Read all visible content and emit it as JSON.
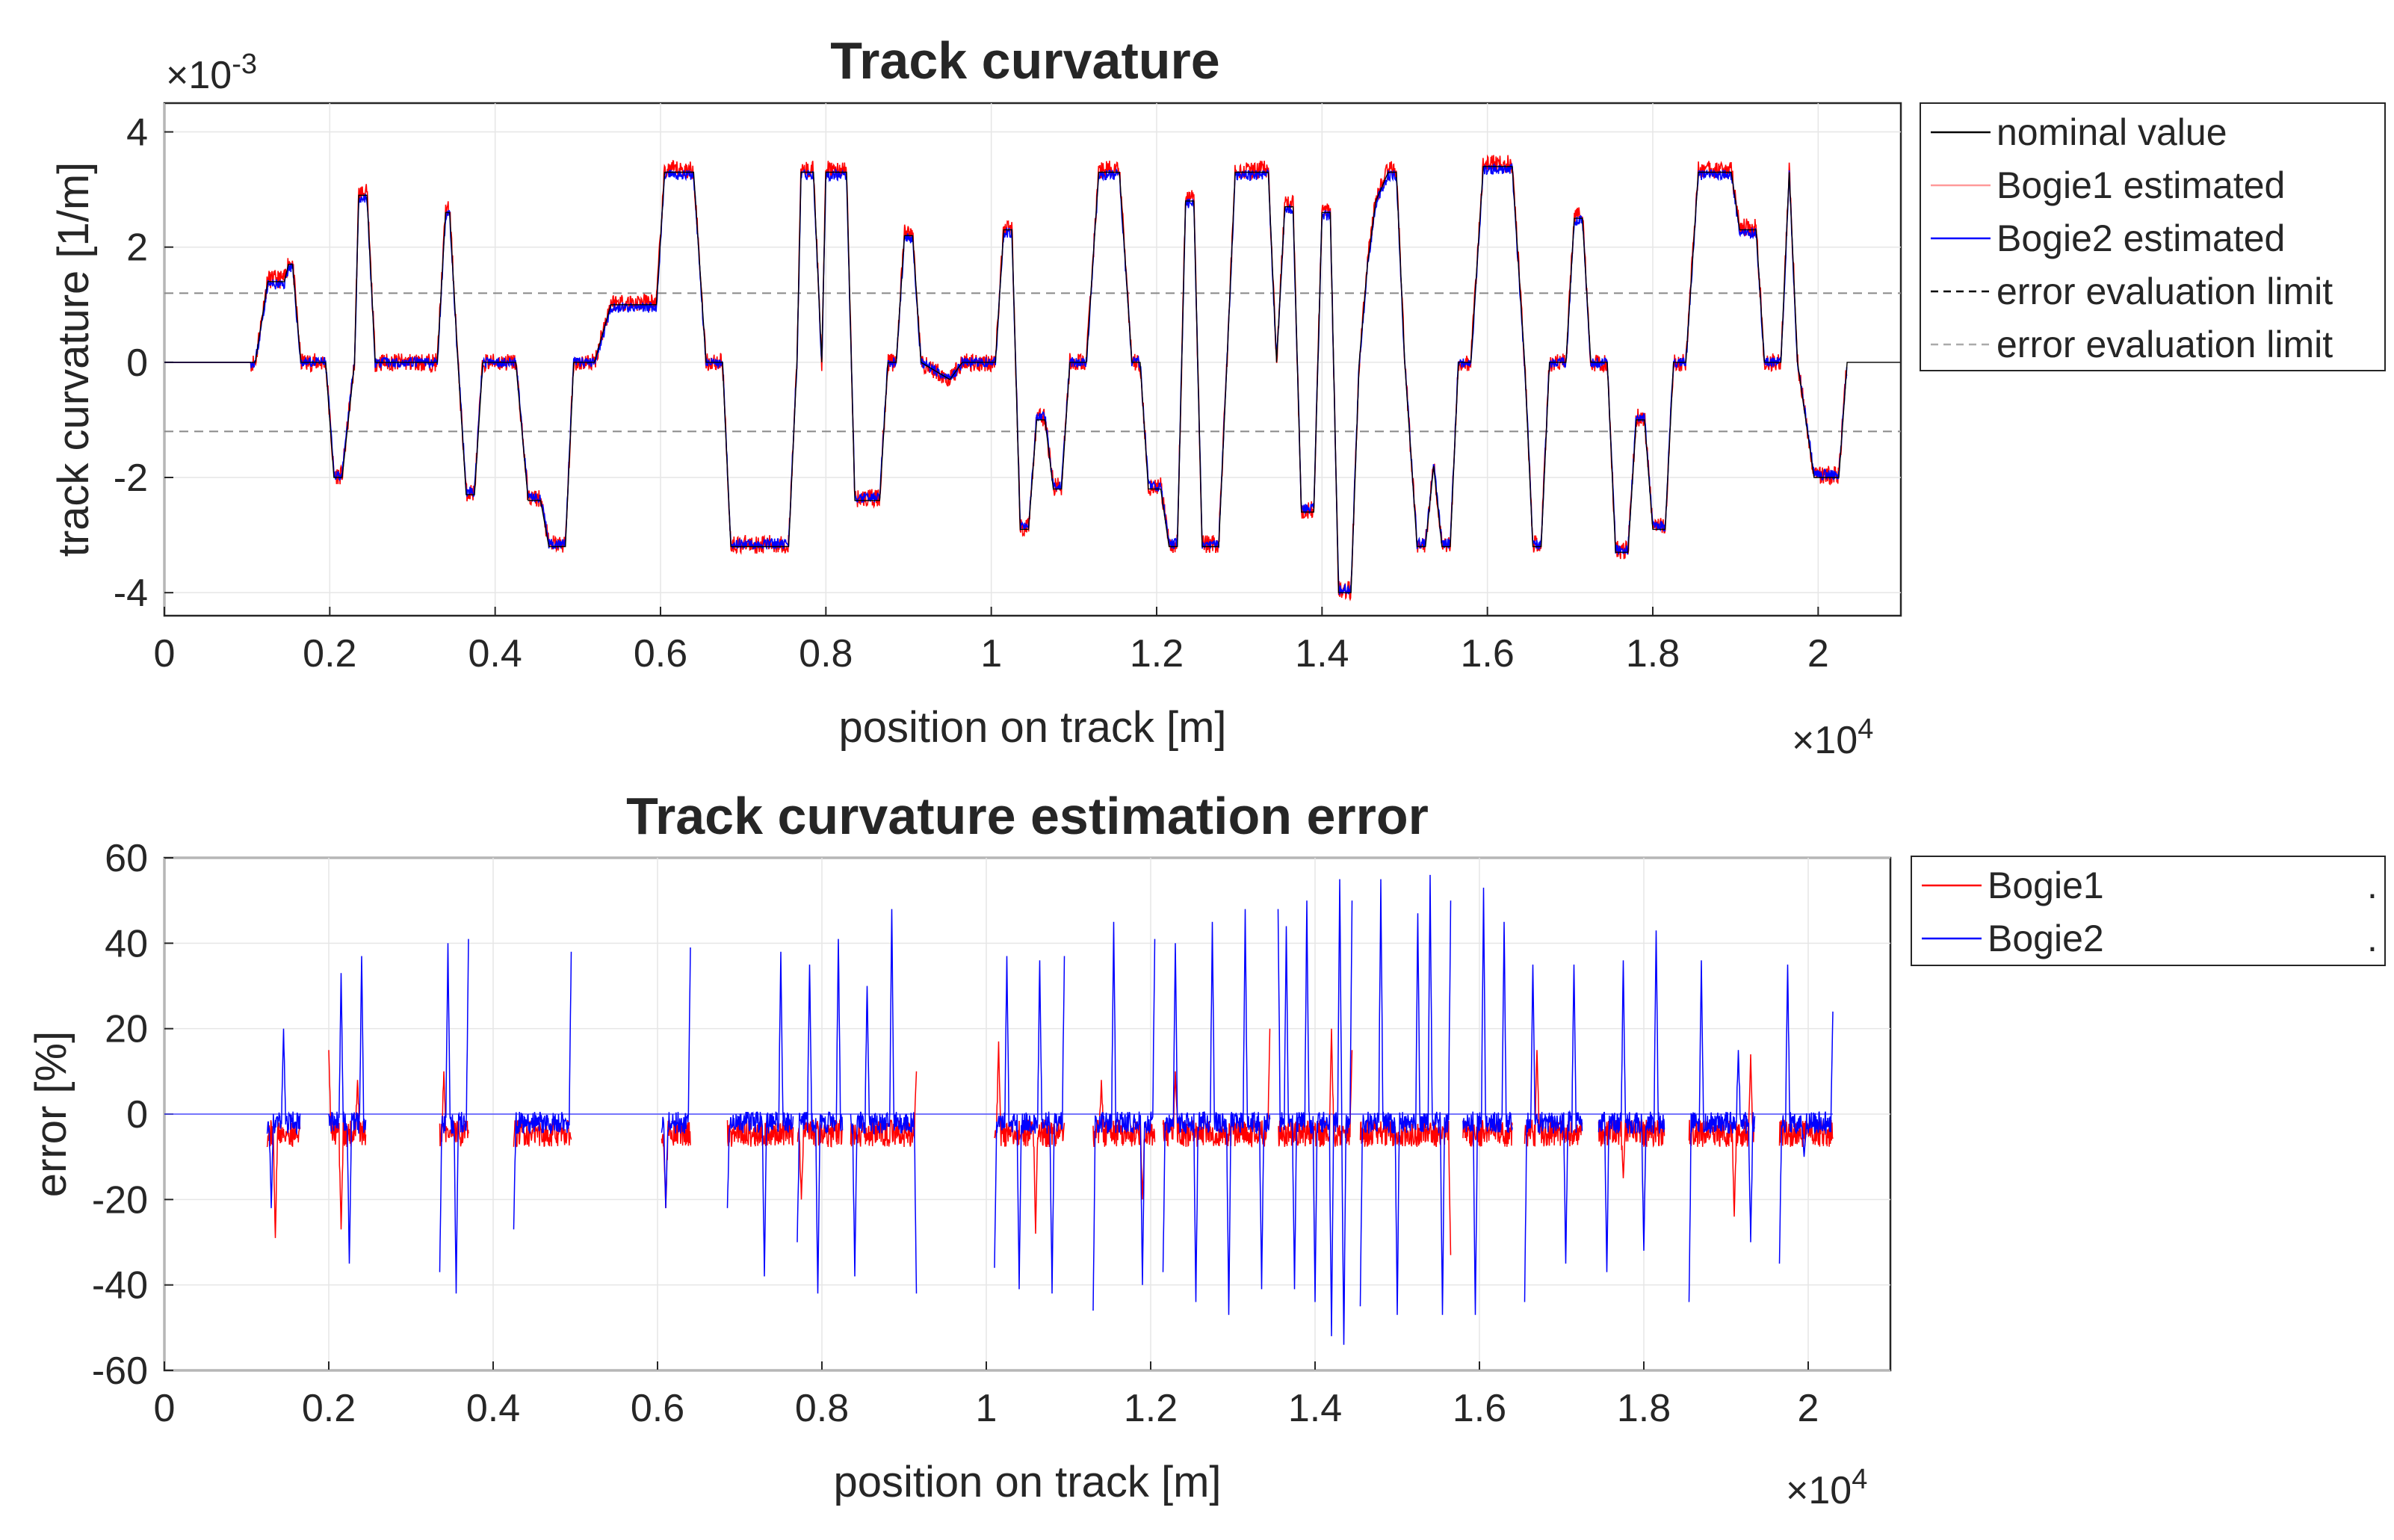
{
  "chart_data": [
    {
      "type": "line",
      "title": "Track curvature",
      "xlabel": "position on track [m]",
      "ylabel": "track curvature [1/m]",
      "x_multiplier": "×10^4",
      "y_multiplier": "×10^-3",
      "x_multiplier_base": "×10",
      "x_multiplier_exp": "4",
      "y_multiplier_base": "×10",
      "y_multiplier_exp": "-3",
      "xlim": [
        0,
        21000
      ],
      "ylim": [
        -4.4,
        4.5
      ],
      "x_ticks": [
        0,
        2000,
        4000,
        6000,
        8000,
        10000,
        12000,
        14000,
        16000,
        18000,
        20000
      ],
      "x_tick_labels": [
        "0",
        "0.2",
        "0.4",
        "0.6",
        "0.8",
        "1",
        "1.2",
        "1.4",
        "1.6",
        "1.8",
        "2"
      ],
      "y_ticks": [
        -4,
        -2,
        0,
        2,
        4
      ],
      "y_tick_labels": [
        "-4",
        "-2",
        "0",
        "2",
        "4"
      ],
      "grid": true,
      "legend_position": "outside-right",
      "legend": [
        {
          "label": "nominal value",
          "color": "#000000",
          "style": "solid"
        },
        {
          "label": "Bogie1 estimated",
          "color": "#ff9999",
          "style": "solid"
        },
        {
          "label": "Bogie2 estimated",
          "color": "#0000ff",
          "style": "solid"
        },
        {
          "label": "error evaluation limit",
          "color": "#000000",
          "style": "dashed"
        },
        {
          "label": "error evaluation limit",
          "color": "#aaaaaa",
          "style": "dashed"
        }
      ],
      "error_evaluation_limit": [
        1.2,
        -1.2
      ],
      "nominal_profile": [
        [
          0,
          0
        ],
        [
          1100,
          0
        ],
        [
          1250,
          1.4
        ],
        [
          1450,
          1.4
        ],
        [
          1500,
          1.7
        ],
        [
          1550,
          1.7
        ],
        [
          1650,
          0
        ],
        [
          1950,
          0
        ],
        [
          2050,
          -2.0
        ],
        [
          2150,
          -2.0
        ],
        [
          2300,
          0
        ],
        [
          2350,
          2.9
        ],
        [
          2450,
          2.9
        ],
        [
          2550,
          0
        ],
        [
          3300,
          0
        ],
        [
          3400,
          2.6
        ],
        [
          3450,
          2.6
        ],
        [
          3550,
          0
        ],
        [
          3650,
          -2.3
        ],
        [
          3750,
          -2.3
        ],
        [
          3850,
          0
        ],
        [
          4250,
          0
        ],
        [
          4400,
          -2.4
        ],
        [
          4550,
          -2.4
        ],
        [
          4650,
          -3.2
        ],
        [
          4850,
          -3.2
        ],
        [
          4950,
          0
        ],
        [
          5200,
          0
        ],
        [
          5400,
          1.0
        ],
        [
          5950,
          1.0
        ],
        [
          6050,
          3.3
        ],
        [
          6400,
          3.3
        ],
        [
          6550,
          0
        ],
        [
          6750,
          0
        ],
        [
          6850,
          -3.2
        ],
        [
          7550,
          -3.2
        ],
        [
          7650,
          0
        ],
        [
          7700,
          3.3
        ],
        [
          7850,
          3.3
        ],
        [
          7950,
          0
        ],
        [
          8000,
          3.3
        ],
        [
          8250,
          3.3
        ],
        [
          8350,
          -2.4
        ],
        [
          8650,
          -2.4
        ],
        [
          8750,
          0
        ],
        [
          8850,
          0
        ],
        [
          8950,
          2.2
        ],
        [
          9050,
          2.2
        ],
        [
          9150,
          0
        ],
        [
          9500,
          -0.3
        ],
        [
          9650,
          0
        ],
        [
          10050,
          0
        ],
        [
          10150,
          2.3
        ],
        [
          10250,
          2.3
        ],
        [
          10350,
          -2.9
        ],
        [
          10450,
          -2.9
        ],
        [
          10550,
          -1.0
        ],
        [
          10650,
          -1.0
        ],
        [
          10750,
          -2.2
        ],
        [
          10850,
          -2.2
        ],
        [
          10950,
          0
        ],
        [
          11150,
          0
        ],
        [
          11300,
          3.3
        ],
        [
          11550,
          3.3
        ],
        [
          11700,
          0
        ],
        [
          11800,
          0
        ],
        [
          11900,
          -2.2
        ],
        [
          12050,
          -2.2
        ],
        [
          12150,
          -3.2
        ],
        [
          12250,
          -3.2
        ],
        [
          12350,
          2.8
        ],
        [
          12450,
          2.8
        ],
        [
          12550,
          -3.2
        ],
        [
          12750,
          -3.2
        ],
        [
          12850,
          0
        ],
        [
          12950,
          3.3
        ],
        [
          13350,
          3.3
        ],
        [
          13450,
          0
        ],
        [
          13550,
          2.7
        ],
        [
          13650,
          2.7
        ],
        [
          13750,
          -2.6
        ],
        [
          13900,
          -2.6
        ],
        [
          14000,
          2.6
        ],
        [
          14100,
          2.6
        ],
        [
          14200,
          -4.0
        ],
        [
          14350,
          -4.0
        ],
        [
          14450,
          0
        ],
        [
          14550,
          1.7
        ],
        [
          14650,
          2.8
        ],
        [
          14800,
          3.3
        ],
        [
          14900,
          3.3
        ],
        [
          15000,
          0
        ],
        [
          15150,
          -3.2
        ],
        [
          15250,
          -3.2
        ],
        [
          15350,
          -1.8
        ],
        [
          15450,
          -3.2
        ],
        [
          15550,
          -3.2
        ],
        [
          15650,
          0
        ],
        [
          15800,
          0
        ],
        [
          15950,
          3.4
        ],
        [
          16300,
          3.4
        ],
        [
          16450,
          0
        ],
        [
          16550,
          -3.2
        ],
        [
          16650,
          -3.2
        ],
        [
          16750,
          0
        ],
        [
          16950,
          0
        ],
        [
          17050,
          2.5
        ],
        [
          17150,
          2.5
        ],
        [
          17250,
          0
        ],
        [
          17450,
          0
        ],
        [
          17550,
          -3.3
        ],
        [
          17700,
          -3.3
        ],
        [
          17800,
          -1.0
        ],
        [
          17900,
          -1.0
        ],
        [
          18000,
          -2.9
        ],
        [
          18150,
          -2.9
        ],
        [
          18250,
          0
        ],
        [
          18400,
          0
        ],
        [
          18550,
          3.3
        ],
        [
          18950,
          3.3
        ],
        [
          19050,
          2.3
        ],
        [
          19250,
          2.3
        ],
        [
          19350,
          0
        ],
        [
          19550,
          0
        ],
        [
          19650,
          3.3
        ],
        [
          19750,
          0
        ],
        [
          19950,
          -2.0
        ],
        [
          20250,
          -2.0
        ],
        [
          20350,
          0
        ],
        [
          21000,
          0
        ]
      ]
    },
    {
      "type": "line",
      "title": "Track curvature estimation error",
      "xlabel": "position on track [m]",
      "ylabel": "error [%]",
      "x_multiplier": "×10^4",
      "x_multiplier_base": "×10",
      "x_multiplier_exp": "4",
      "xlim": [
        0,
        21000
      ],
      "ylim": [
        -60,
        60
      ],
      "x_ticks": [
        0,
        2000,
        4000,
        6000,
        8000,
        10000,
        12000,
        14000,
        16000,
        18000,
        20000
      ],
      "x_tick_labels": [
        "0",
        "0.2",
        "0.4",
        "0.6",
        "0.8",
        "1",
        "1.2",
        "1.4",
        "1.6",
        "1.8",
        "2"
      ],
      "y_ticks": [
        -60,
        -40,
        -20,
        0,
        20,
        40,
        60
      ],
      "y_tick_labels": [
        "-60",
        "-40",
        "-20",
        "0",
        "20",
        "40",
        "60"
      ],
      "grid": true,
      "legend_position": "outside-right",
      "legend": [
        {
          "label": "Bogie1",
          "color": "#ff0000",
          "style": "solid"
        },
        {
          "label": "Bogie2",
          "color": "#0000ff",
          "style": "solid"
        }
      ],
      "legend_dots": [
        ".",
        "."
      ],
      "evaluation_segments": [
        [
          1250,
          1650
        ],
        [
          2000,
          2450
        ],
        [
          3350,
          3700
        ],
        [
          4250,
          4950
        ],
        [
          6050,
          6400
        ],
        [
          6850,
          7650
        ],
        [
          7700,
          8250
        ],
        [
          8350,
          9150
        ],
        [
          10100,
          10950
        ],
        [
          11300,
          12050
        ],
        [
          12150,
          13450
        ],
        [
          13550,
          14450
        ],
        [
          14550,
          15650
        ],
        [
          15800,
          16400
        ],
        [
          16550,
          17250
        ],
        [
          17450,
          18250
        ],
        [
          18550,
          19350
        ],
        [
          19650,
          20300
        ]
      ],
      "blue_spikes": [
        [
          1300,
          -22
        ],
        [
          1450,
          20
        ],
        [
          1950,
          -43
        ],
        [
          2150,
          33
        ],
        [
          2250,
          -35
        ],
        [
          2400,
          37
        ],
        [
          3350,
          -37
        ],
        [
          3450,
          40
        ],
        [
          3550,
          -42
        ],
        [
          3700,
          41
        ],
        [
          4250,
          -27
        ],
        [
          4950,
          38
        ],
        [
          6100,
          -22
        ],
        [
          6400,
          39
        ],
        [
          6850,
          -22
        ],
        [
          7300,
          -38
        ],
        [
          7500,
          38
        ],
        [
          7700,
          -30
        ],
        [
          7850,
          35
        ],
        [
          7950,
          -42
        ],
        [
          8200,
          41
        ],
        [
          8400,
          -38
        ],
        [
          8550,
          30
        ],
        [
          8850,
          48
        ],
        [
          9150,
          -42
        ],
        [
          10100,
          -36
        ],
        [
          10250,
          37
        ],
        [
          10400,
          -41
        ],
        [
          10650,
          36
        ],
        [
          10800,
          -42
        ],
        [
          10950,
          37
        ],
        [
          11300,
          -46
        ],
        [
          11550,
          45
        ],
        [
          11900,
          -40
        ],
        [
          12050,
          41
        ],
        [
          12150,
          -37
        ],
        [
          12300,
          40
        ],
        [
          12550,
          -44
        ],
        [
          12750,
          45
        ],
        [
          12950,
          -47
        ],
        [
          13150,
          48
        ],
        [
          13350,
          -41
        ],
        [
          13550,
          48
        ],
        [
          13650,
          44
        ],
        [
          13750,
          -41
        ],
        [
          13900,
          50
        ],
        [
          14000,
          -44
        ],
        [
          14200,
          -52
        ],
        [
          14300,
          55
        ],
        [
          14350,
          -54
        ],
        [
          14450,
          50
        ],
        [
          14550,
          -45
        ],
        [
          14800,
          55
        ],
        [
          15000,
          -47
        ],
        [
          15250,
          47
        ],
        [
          15400,
          56
        ],
        [
          15550,
          -47
        ],
        [
          15650,
          50
        ],
        [
          15950,
          -47
        ],
        [
          16050,
          53
        ],
        [
          16300,
          45
        ],
        [
          16550,
          -44
        ],
        [
          16650,
          35
        ],
        [
          17050,
          -35
        ],
        [
          17150,
          35
        ],
        [
          17550,
          -37
        ],
        [
          17750,
          36
        ],
        [
          18000,
          -32
        ],
        [
          18150,
          43
        ],
        [
          18550,
          -44
        ],
        [
          18700,
          36
        ],
        [
          19150,
          15
        ],
        [
          19300,
          -30
        ],
        [
          19500,
          38
        ],
        [
          19650,
          -35
        ],
        [
          19750,
          35
        ],
        [
          19950,
          -10
        ],
        [
          20300,
          24
        ]
      ],
      "red_spikes": [
        [
          1350,
          -29
        ],
        [
          2000,
          15
        ],
        [
          2150,
          -27
        ],
        [
          2350,
          8
        ],
        [
          3400,
          10
        ],
        [
          4950,
          -6
        ],
        [
          6100,
          -22
        ],
        [
          7750,
          -20
        ],
        [
          9150,
          10
        ],
        [
          10150,
          17
        ],
        [
          10600,
          -28
        ],
        [
          11400,
          8
        ],
        [
          11900,
          -20
        ],
        [
          12300,
          10
        ],
        [
          13450,
          20
        ],
        [
          14200,
          20
        ],
        [
          14450,
          15
        ],
        [
          15650,
          -33
        ],
        [
          16700,
          15
        ],
        [
          17750,
          -15
        ],
        [
          19100,
          -24
        ],
        [
          19300,
          14
        ],
        [
          19550,
          -15
        ]
      ]
    }
  ]
}
